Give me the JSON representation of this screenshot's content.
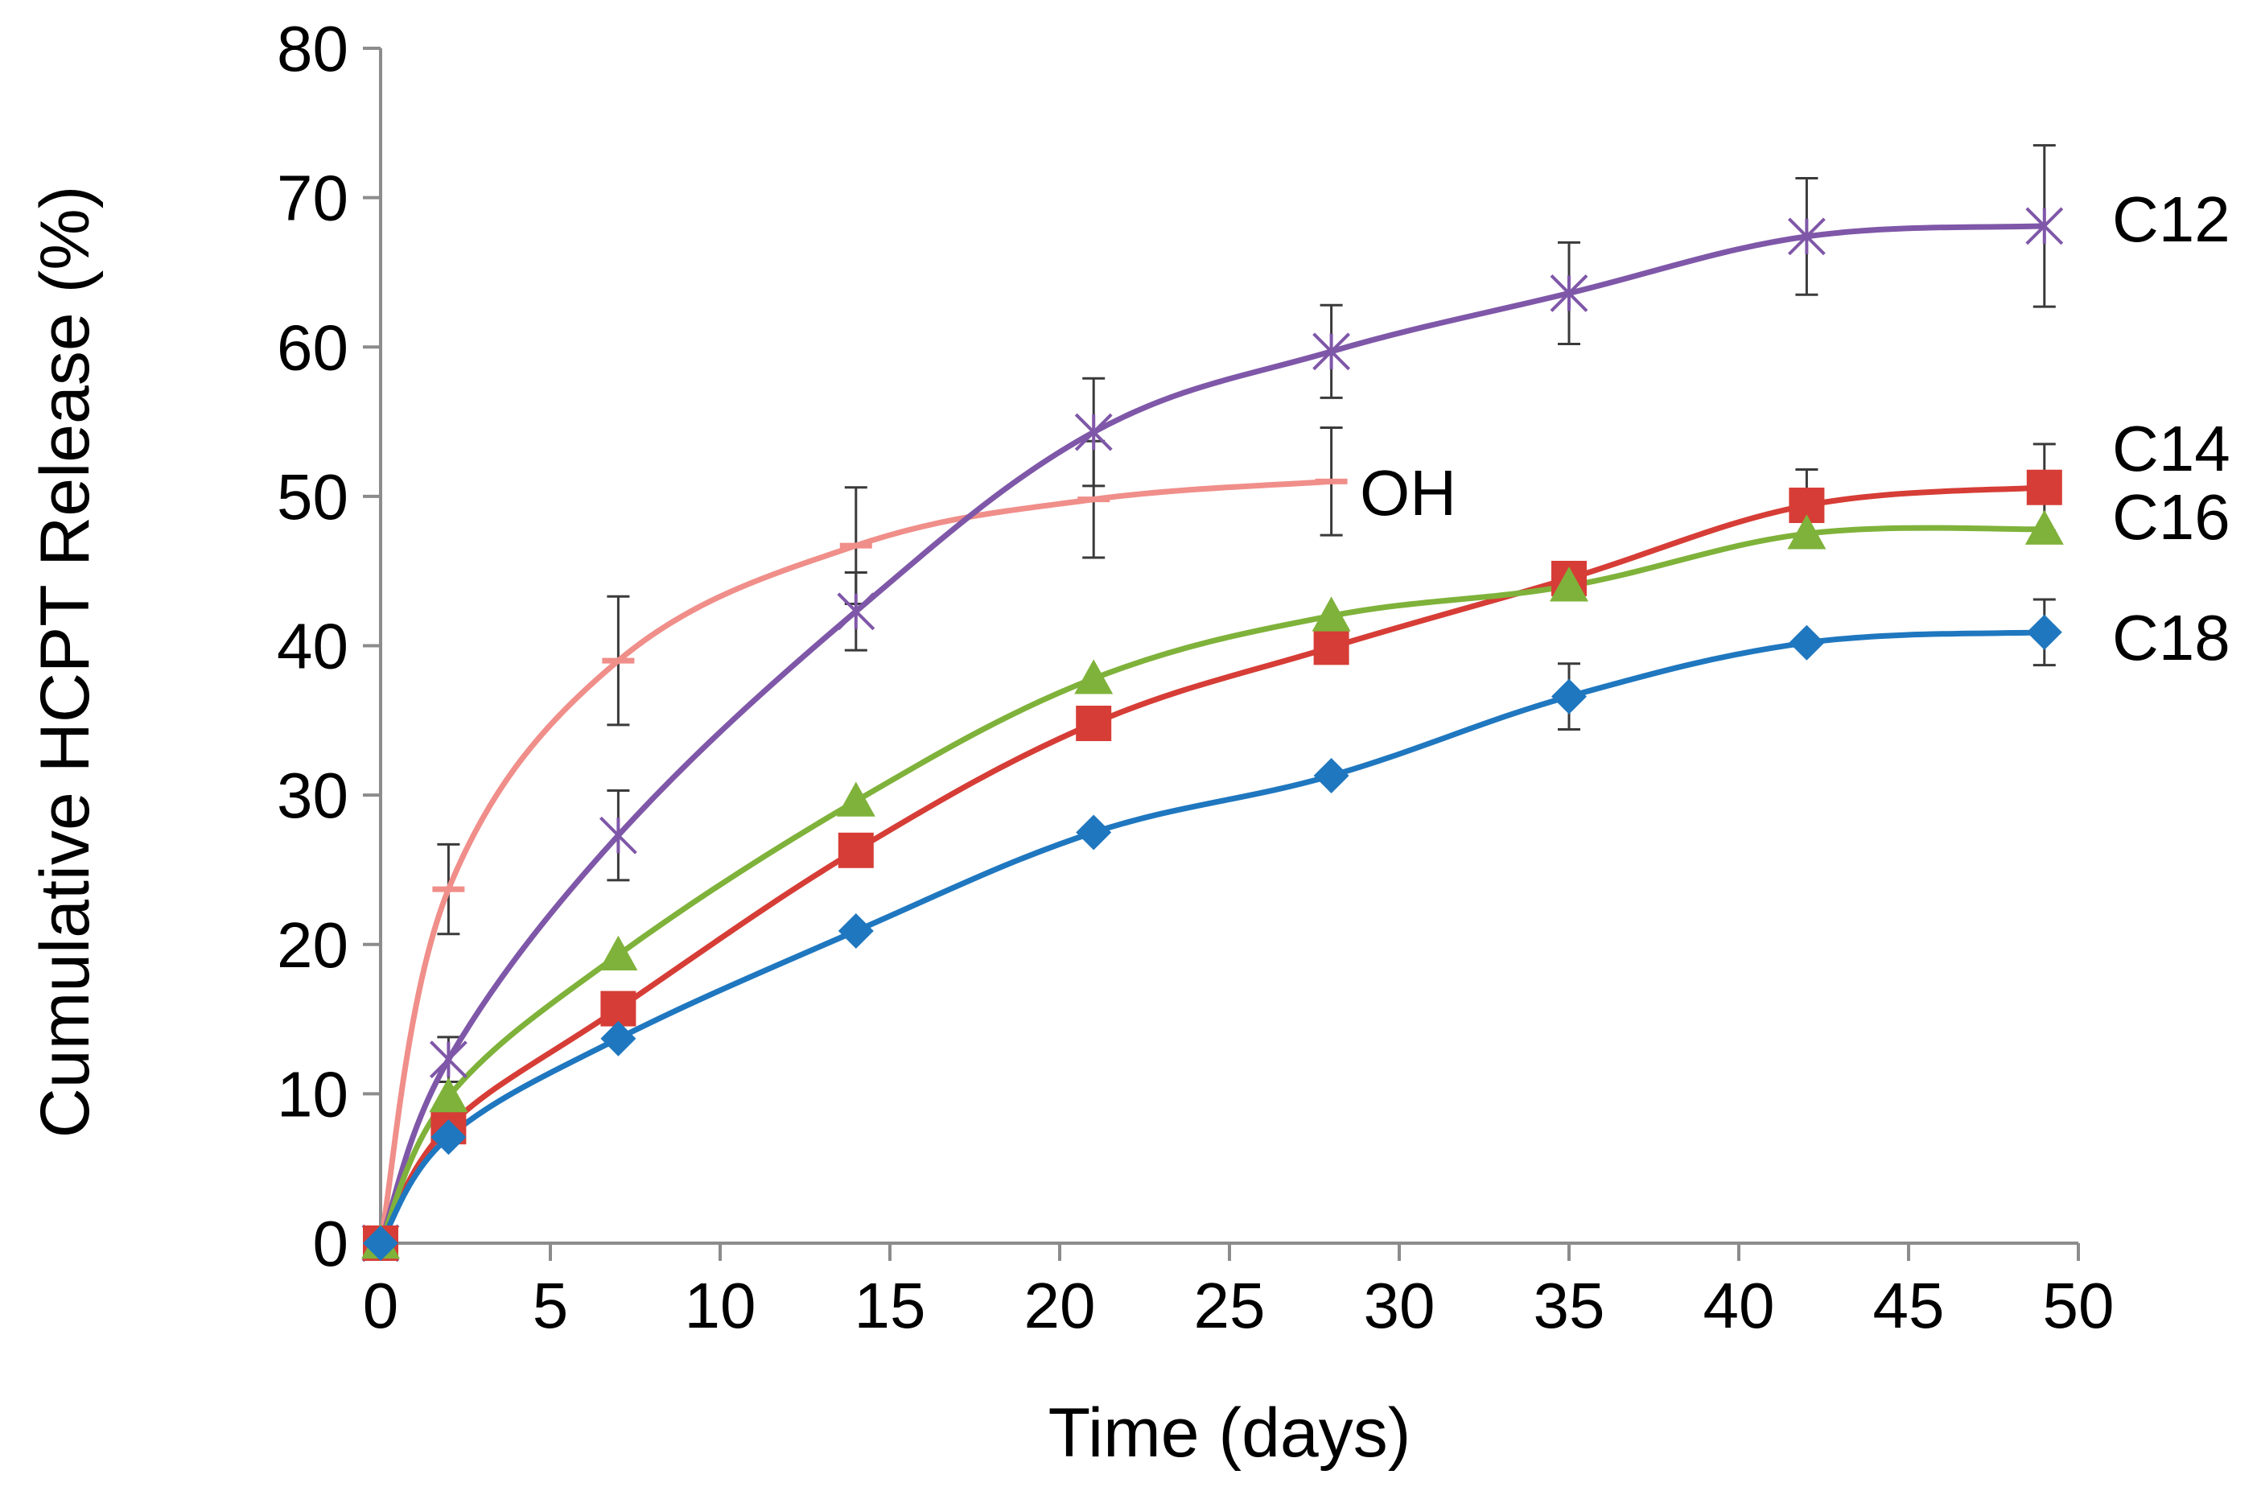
{
  "chart_data": {
    "type": "line",
    "title": "",
    "xlabel": "Time (days)",
    "ylabel": "Cumulative HCPT Release (%)",
    "xlim": [
      0,
      50
    ],
    "ylim": [
      0,
      80
    ],
    "xticks": [
      0,
      5,
      10,
      15,
      20,
      25,
      30,
      35,
      40,
      45,
      50
    ],
    "yticks": [
      0,
      10,
      20,
      30,
      40,
      50,
      60,
      70,
      80
    ],
    "grid": false,
    "legend": "inline labels at right end of each series",
    "series": [
      {
        "name": "OH",
        "label": "OH",
        "color": "#F08E8A",
        "marker": "dash",
        "x": [
          0,
          2,
          7,
          14,
          21,
          28
        ],
        "y": [
          0,
          23.7,
          39.0,
          46.7,
          49.8,
          51.0
        ],
        "err": [
          0,
          3.0,
          4.3,
          3.9,
          3.9,
          3.6
        ]
      },
      {
        "name": "C12",
        "label": "C12",
        "color": "#7F57A8",
        "marker": "x",
        "x": [
          0,
          2,
          7,
          14,
          21,
          28,
          35,
          42,
          49
        ],
        "y": [
          0,
          12.3,
          27.3,
          42.3,
          54.3,
          59.7,
          63.6,
          67.4,
          68.1
        ],
        "err": [
          0,
          1.5,
          3.0,
          2.6,
          3.6,
          3.1,
          3.4,
          3.9,
          5.4
        ]
      },
      {
        "name": "C14",
        "label": "C14",
        "color": "#D63D36",
        "marker": "square",
        "x": [
          0,
          2,
          7,
          14,
          21,
          28,
          35,
          42,
          49
        ],
        "y": [
          0,
          7.8,
          15.7,
          26.3,
          34.8,
          39.9,
          44.5,
          49.4,
          50.6
        ],
        "err": [
          0,
          0,
          0,
          0,
          0,
          0,
          0,
          2.4,
          2.9
        ]
      },
      {
        "name": "C16",
        "label": "C16",
        "color": "#7FB23A",
        "marker": "triangle",
        "x": [
          0,
          2,
          7,
          14,
          21,
          28,
          35,
          42,
          49
        ],
        "y": [
          0,
          9.8,
          19.3,
          29.6,
          37.8,
          42.0,
          44.0,
          47.5,
          47.8
        ],
        "err": [
          0,
          0,
          0,
          0,
          0,
          0,
          0,
          0,
          0
        ]
      },
      {
        "name": "C18",
        "label": "C18",
        "color": "#1F77BF",
        "marker": "diamond",
        "x": [
          0,
          2,
          7,
          14,
          21,
          28,
          35,
          42,
          49
        ],
        "y": [
          0,
          7.1,
          13.7,
          20.9,
          27.5,
          31.3,
          36.6,
          40.2,
          40.9
        ],
        "err": [
          0,
          0,
          0,
          0,
          0,
          0,
          2.2,
          0,
          2.2
        ]
      }
    ]
  }
}
